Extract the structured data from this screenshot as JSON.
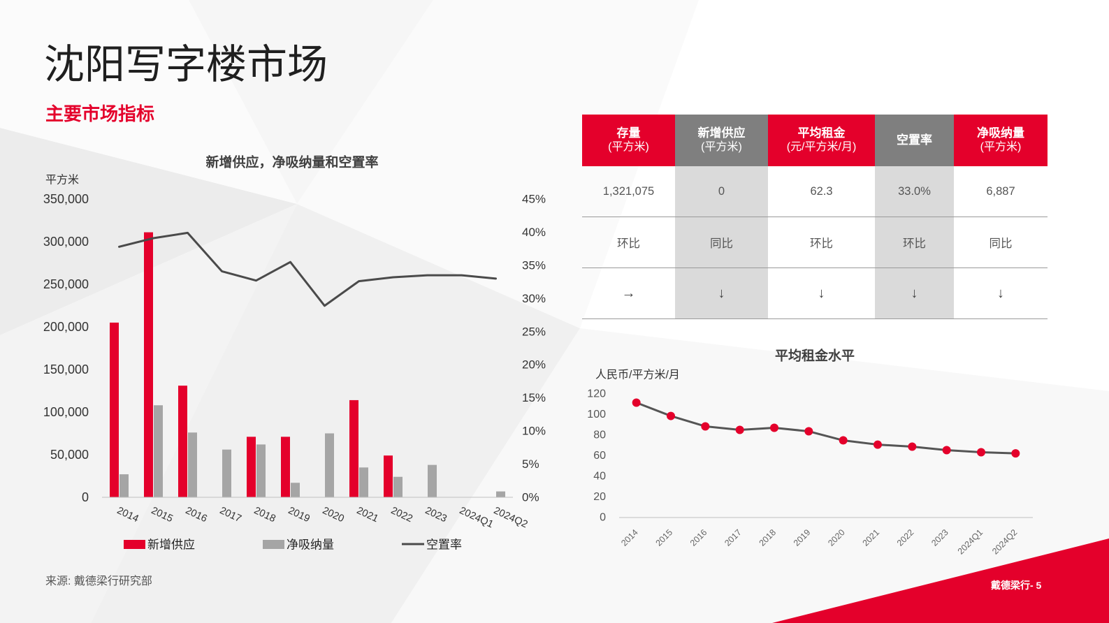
{
  "slide": {
    "title": "沈阳写字楼市场",
    "subtitle": "主要市场指标",
    "source": "来源: 戴德梁行研究部",
    "page_footer": "戴德梁行- 5"
  },
  "colors": {
    "brand_red": "#e4002b",
    "header_gray": "#7f7f7f",
    "cell_gray": "#dadada"
  },
  "table": {
    "headers": [
      {
        "label": "存量",
        "unit": "(平方米)",
        "color": "#e4002b"
      },
      {
        "label": "新增供应",
        "unit": "(平方米)",
        "color": "#7f7f7f"
      },
      {
        "label": "平均租金",
        "unit": "(元/平方米/月)",
        "color": "#e4002b"
      },
      {
        "label": "空置率",
        "color": "#7f7f7f"
      },
      {
        "label": "净吸纳量",
        "unit": "(平方米)",
        "color": "#e4002b"
      }
    ],
    "values": [
      "1,321,075",
      "0",
      "62.3",
      "33.0%",
      "6,887"
    ],
    "comparison": [
      "环比",
      "同比",
      "环比",
      "环比",
      "同比"
    ],
    "trend": [
      "→",
      "↓",
      "↓",
      "↓",
      "↓"
    ]
  },
  "chart_data": [
    {
      "type": "bar",
      "title": "新增供应，净吸纳量和空置率",
      "ylabel": "平方米",
      "categories": [
        "2014",
        "2015",
        "2016",
        "2017",
        "2018",
        "2019",
        "2020",
        "2021",
        "2022",
        "2023",
        "2024Q1",
        "2024Q2"
      ],
      "ylim": [
        0,
        350000
      ],
      "y_ticks": [
        "0",
        "50,000",
        "100,000",
        "150,000",
        "200,000",
        "250,000",
        "300,000",
        "350,000"
      ],
      "y2lim": [
        0,
        45
      ],
      "y2_ticks": [
        "0%",
        "5%",
        "10%",
        "15%",
        "20%",
        "25%",
        "30%",
        "35%",
        "40%",
        "45%"
      ],
      "grid": false,
      "legend": "bottom",
      "series": [
        {
          "name": "新增供应",
          "type": "bar",
          "axis": "left",
          "color": "#e4002b",
          "values": [
            205000,
            311000,
            131000,
            0,
            71000,
            71000,
            0,
            114000,
            49000,
            0,
            0,
            0
          ]
        },
        {
          "name": "净吸纳量",
          "type": "bar",
          "axis": "left",
          "color": "#a5a5a5",
          "values": [
            27000,
            108000,
            76000,
            56000,
            62000,
            17000,
            75000,
            35000,
            24000,
            38000,
            0,
            6887
          ]
        },
        {
          "name": "空置率",
          "type": "line",
          "axis": "right",
          "color": "#4a4a4a",
          "values": [
            37.8,
            39.1,
            39.9,
            34.1,
            32.7,
            35.5,
            28.9,
            32.6,
            33.2,
            33.5,
            33.5,
            33.0
          ]
        }
      ]
    },
    {
      "type": "line",
      "title": "平均租金水平",
      "ylabel": "人民币/平方米/月",
      "categories": [
        "2014",
        "2015",
        "2016",
        "2017",
        "2018",
        "2019",
        "2020",
        "2021",
        "2022",
        "2023",
        "2024Q1",
        "2024Q2"
      ],
      "ylim": [
        0,
        120
      ],
      "y_ticks": [
        "0",
        "20",
        "40",
        "60",
        "80",
        "100",
        "120"
      ],
      "grid": false,
      "legend": "none",
      "line_color": "#555555",
      "marker_color": "#e4002b",
      "series": [
        {
          "values": [
            111.5,
            98.6,
            88.5,
            85.1,
            87.1,
            83.7,
            74.9,
            70.8,
            68.8,
            65.4,
            63.4,
            62.3
          ]
        }
      ]
    }
  ]
}
